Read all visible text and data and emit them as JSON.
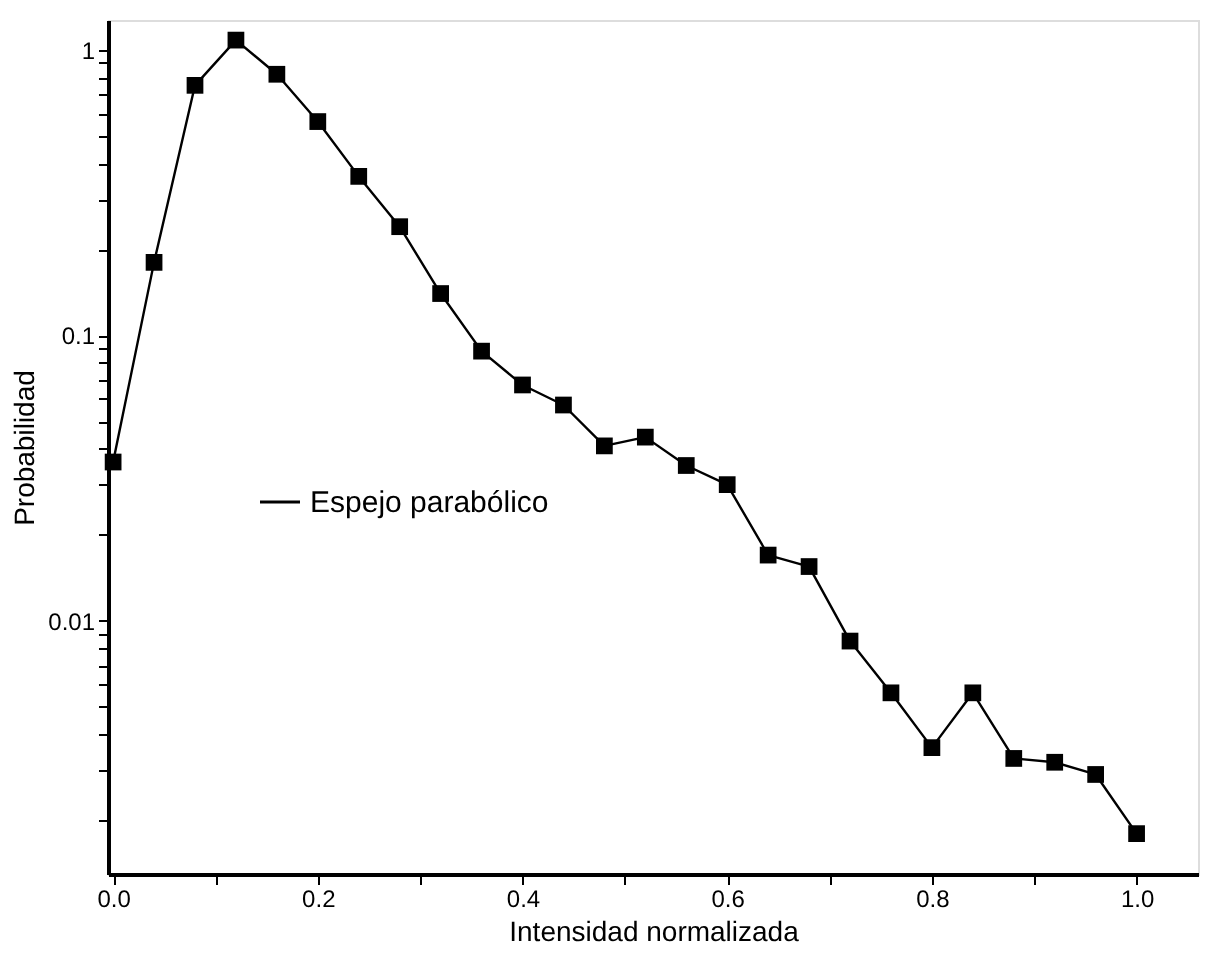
{
  "chart_data": {
    "type": "line",
    "xlabel": "Intensidad normalizada",
    "ylabel": "Probabilidad",
    "x": [
      0,
      0.04,
      0.08,
      0.12,
      0.16,
      0.2,
      0.24,
      0.28,
      0.32,
      0.36,
      0.4,
      0.44,
      0.48,
      0.52,
      0.56,
      0.6,
      0.64,
      0.68,
      0.72,
      0.76,
      0.8,
      0.84,
      0.88,
      0.92,
      0.96,
      1.0
    ],
    "series": [
      {
        "name": "Espejo parabólico",
        "color": "#000000",
        "values": [
          0.036,
          0.18,
          0.75,
          1.08,
          0.82,
          0.56,
          0.36,
          0.24,
          0.14,
          0.088,
          0.067,
          0.057,
          0.041,
          0.044,
          0.035,
          0.03,
          0.017,
          0.0155,
          0.0085,
          0.0056,
          0.0036,
          0.0056,
          0.0033,
          0.0032,
          0.0029,
          0.0018
        ]
      }
    ],
    "log": "y",
    "xlim": [
      -0.005,
      1.06
    ],
    "ylim": [
      0.0013,
      1.27
    ],
    "xticks": [
      {
        "value": 0,
        "label": "0.0"
      },
      {
        "value": 0.1,
        "label": null
      },
      {
        "value": 0.2,
        "label": "0.2"
      },
      {
        "value": 0.3,
        "label": null
      },
      {
        "value": 0.4,
        "label": "0.4"
      },
      {
        "value": 0.5,
        "label": null
      },
      {
        "value": 0.6,
        "label": "0.6"
      },
      {
        "value": 0.7,
        "label": null
      },
      {
        "value": 0.8,
        "label": "0.8"
      },
      {
        "value": 0.9,
        "label": null
      },
      {
        "value": 1.0,
        "label": "1.0"
      }
    ],
    "yticks": [
      {
        "value": 0.002,
        "label": null
      },
      {
        "value": 0.003,
        "label": null
      },
      {
        "value": 0.004,
        "label": null
      },
      {
        "value": 0.005,
        "label": null
      },
      {
        "value": 0.006,
        "label": null
      },
      {
        "value": 0.007,
        "label": null
      },
      {
        "value": 0.008,
        "label": null
      },
      {
        "value": 0.009,
        "label": null
      },
      0.01,
      {
        "value": 0.02,
        "label": null
      },
      {
        "value": 0.03,
        "label": null
      },
      {
        "value": 0.04,
        "label": null
      },
      {
        "value": 0.05,
        "label": null
      },
      {
        "value": 0.06,
        "label": null
      },
      {
        "value": 0.07,
        "label": null
      },
      {
        "value": 0.08,
        "label": null
      },
      {
        "value": 0.09,
        "label": null
      },
      0.1,
      {
        "value": 0.2,
        "label": null
      },
      {
        "value": 0.3,
        "label": null
      },
      {
        "value": 0.4,
        "label": null
      },
      {
        "value": 0.5,
        "label": null
      },
      {
        "value": 0.6,
        "label": null
      },
      {
        "value": 0.7,
        "label": null
      },
      {
        "value": 0.8,
        "label": null
      },
      {
        "value": 0.9,
        "label": null
      },
      1
    ],
    "grid": false,
    "legend": "left",
    "marker": "square",
    "line_style": "solid"
  }
}
